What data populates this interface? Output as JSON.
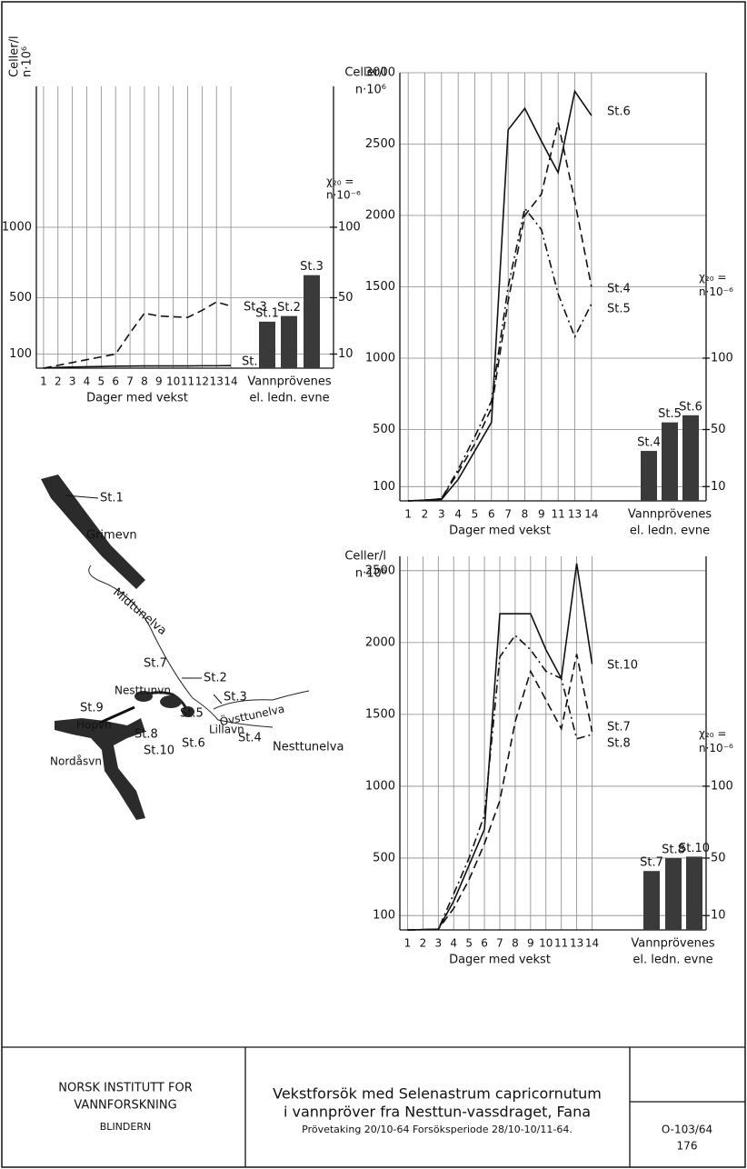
{
  "chart_data": [
    {
      "type": "line",
      "categories": [
        "1",
        "2",
        "3",
        "4",
        "5",
        "6",
        "7",
        "8",
        "9",
        "10",
        "11",
        "12",
        "13",
        "14"
      ],
      "ylabel": [
        "Celler/l",
        "n·10⁶"
      ],
      "xlabel": "Dager med vekst",
      "ylim": [
        0,
        2000
      ],
      "yticks": [
        100,
        500,
        1000
      ],
      "y2label": [
        "χ₂₀ =",
        "n·10⁻⁶"
      ],
      "y2lim": [
        0,
        200
      ],
      "y2ticks": [
        10,
        50,
        100
      ],
      "series": [
        {
          "name": "St.3",
          "color": "#111",
          "style": "dashed",
          "values": [
            0,
            20,
            40,
            60,
            80,
            100,
            250,
            390,
            370,
            365,
            360,
            410,
            470,
            440
          ]
        },
        {
          "name": "St.1,2",
          "color": "#111",
          "style": "solid",
          "values": [
            0,
            5,
            8,
            10,
            12,
            14,
            15,
            16,
            16,
            16,
            16,
            17,
            17,
            18
          ]
        }
      ],
      "bars": {
        "categories": [
          "St.1",
          "St.2",
          "St.3"
        ],
        "values": [
          33,
          37,
          66
        ],
        "color": "#3a3a3a",
        "axis": "y2",
        "label": [
          "Vannprövenes",
          "el. ledn. evne"
        ]
      }
    },
    {
      "type": "line",
      "categories": [
        "1",
        "2",
        "3",
        "4",
        "5",
        "6",
        "7",
        "8",
        "9",
        "11",
        "13",
        "14"
      ],
      "ylabel": [
        "Celler/l",
        "n·10⁶"
      ],
      "xlabel": "Dager med vekst",
      "ylim": [
        0,
        3000
      ],
      "yticks": [
        100,
        500,
        1000,
        1500,
        2000,
        2500,
        3000
      ],
      "y2label": [
        "χ₂₀ =",
        "n·10⁻⁶"
      ],
      "y2lim": [
        0,
        300
      ],
      "y2ticks": [
        10,
        50,
        100
      ],
      "series": [
        {
          "name": "St.6",
          "color": "#111",
          "style": "solid",
          "values": [
            0,
            5,
            10,
            150,
            350,
            550,
            2600,
            2750,
            2520,
            2300,
            2870,
            2700
          ]
        },
        {
          "name": "St.4",
          "color": "#111",
          "style": "dashed",
          "values": [
            0,
            5,
            15,
            200,
            400,
            650,
            1400,
            2000,
            2150,
            2650,
            2100,
            1500
          ]
        },
        {
          "name": "St.5",
          "color": "#111",
          "style": "dashdot",
          "values": [
            0,
            5,
            15,
            220,
            450,
            700,
            1500,
            2050,
            1900,
            1450,
            1150,
            1380
          ]
        }
      ],
      "bars": {
        "categories": [
          "St.4",
          "St.5",
          "St.6"
        ],
        "values": [
          35,
          55,
          60
        ],
        "color": "#3a3a3a",
        "axis": "y2",
        "label": [
          "Vannprövenes",
          "el. ledn. evne"
        ]
      }
    },
    {
      "type": "line",
      "categories": [
        "1",
        "2",
        "3",
        "4",
        "5",
        "6",
        "7",
        "8",
        "9",
        "10",
        "11",
        "13",
        "14"
      ],
      "ylabel": [
        "Celler/l",
        "n·10⁶"
      ],
      "xlabel": "Dager med vekst",
      "ylim": [
        0,
        2600
      ],
      "yticks": [
        100,
        500,
        1000,
        1500,
        2000,
        2500
      ],
      "y2label": [
        "χ₂₀ =",
        "n·10⁻⁶"
      ],
      "y2lim": [
        0,
        260
      ],
      "y2ticks": [
        10,
        50,
        100
      ],
      "series": [
        {
          "name": "St.10",
          "color": "#111",
          "style": "solid",
          "values": [
            0,
            2,
            5,
            200,
            450,
            700,
            2200,
            2200,
            2200,
            1950,
            1750,
            2550,
            1850
          ]
        },
        {
          "name": "St.7",
          "color": "#111",
          "style": "dashed",
          "values": [
            0,
            2,
            5,
            150,
            350,
            600,
            900,
            1450,
            1800,
            1600,
            1400,
            1920,
            1380
          ]
        },
        {
          "name": "St.8",
          "color": "#111",
          "style": "dashdot",
          "values": [
            0,
            2,
            5,
            250,
            500,
            800,
            1900,
            2050,
            1950,
            1800,
            1750,
            1330,
            1360
          ]
        }
      ],
      "bars": {
        "categories": [
          "St.7",
          "St.8",
          "St.10"
        ],
        "values": [
          41,
          50,
          51
        ],
        "color": "#3a3a3a",
        "axis": "y2",
        "label": [
          "Vannprövenes",
          "el. ledn. evne"
        ]
      }
    }
  ],
  "map": {
    "labels": [
      "St.1",
      "Grimevn",
      "Midtunelva",
      "St.2",
      "St.3",
      "Övsttunelva",
      "St.4",
      "St.5",
      "St.7",
      "Nesttunvn",
      "St.9",
      "Hopvn",
      "St.8",
      "St.10",
      "St.6",
      "Lillavn",
      "Nesttunelva",
      "Nordåsvn"
    ]
  },
  "title_block": {
    "institute": [
      "NORSK INSTITUTT FOR",
      "VANNFORSKNING",
      "BLINDERN"
    ],
    "title": [
      "Vekstforsök med Selenastrum capricornutum",
      "i vannpröver fra Nesttun-vassdraget, Fana"
    ],
    "subtitle": "Prövetaking 20/10-64 Forsöksperiode 28/10-10/11-64.",
    "number": [
      "O-103/64",
      "176"
    ]
  }
}
